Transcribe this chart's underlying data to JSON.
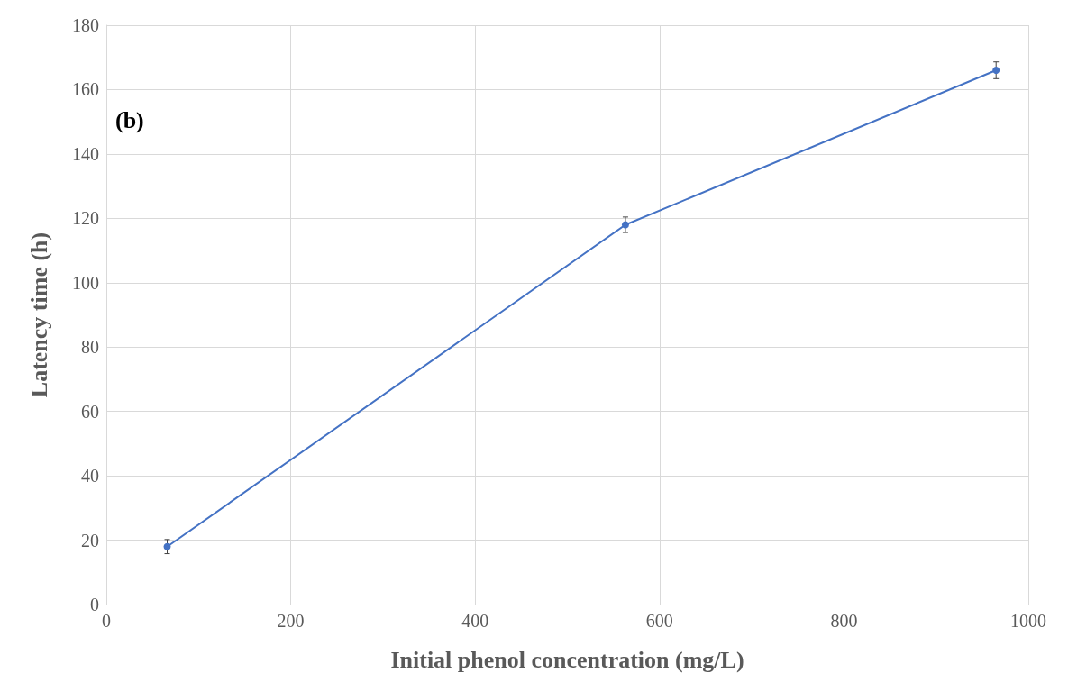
{
  "chart_data": {
    "type": "line",
    "xlabel": "Initial phenol concentration (mg/L)",
    "ylabel": "Latency time (h)",
    "annotations": [
      "(b)"
    ],
    "x": [
      66,
      563,
      965
    ],
    "series": [
      {
        "color": "#4472c4",
        "values": [
          18,
          118,
          166
        ],
        "errors": [
          2.2,
          2.4,
          2.6
        ]
      }
    ],
    "xlim": [
      0,
      1000
    ],
    "xticks": [
      0,
      200,
      400,
      600,
      800,
      1000
    ],
    "ylim": [
      0,
      180
    ],
    "yticks": [
      0,
      20,
      40,
      60,
      80,
      100,
      120,
      140,
      160,
      180
    ],
    "grid": true,
    "marker": "circle",
    "line_style": "solid"
  }
}
